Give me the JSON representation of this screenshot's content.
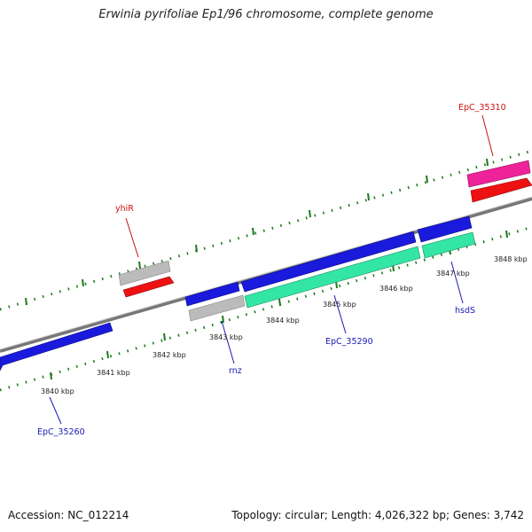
{
  "title": "Erwinia pyrifoliae Ep1/96 chromosome, complete genome",
  "footer": {
    "accession": "Accession: NC_012214",
    "summary": "Topology: circular; Length: 4,026,322 bp; Genes: 3,742"
  },
  "colors": {
    "backbone": "#888888",
    "tick": "#1a7a1a",
    "cds_blue": "#1a1adc",
    "cds_green": "#33e6a6",
    "cds_red": "#ee1111",
    "cds_pink": "#ee2299",
    "cds_grey": "#bbbbbb",
    "label_blue": "#1a1ab8",
    "label_red": "#cc1111"
  },
  "kbp_labels": [
    "3840 kbp",
    "3841 kbp",
    "3842 kbp",
    "3843 kbp",
    "3844 kbp",
    "3845 kbp",
    "3846 kbp",
    "3847 kbp",
    "3848 kbp"
  ],
  "gene_labels": [
    {
      "id": "yhiR",
      "text": "yhiR",
      "color": "red"
    },
    {
      "id": "EpC_35310",
      "text": "EpC_35310",
      "color": "red"
    },
    {
      "id": "EpC_35260",
      "text": "EpC_35260",
      "color": "blue"
    },
    {
      "id": "rnz",
      "text": "rnz",
      "color": "blue"
    },
    {
      "id": "EpC_35290",
      "text": "EpC_35290",
      "color": "blue"
    },
    {
      "id": "hsdS",
      "text": "hsdS",
      "color": "blue"
    }
  ]
}
